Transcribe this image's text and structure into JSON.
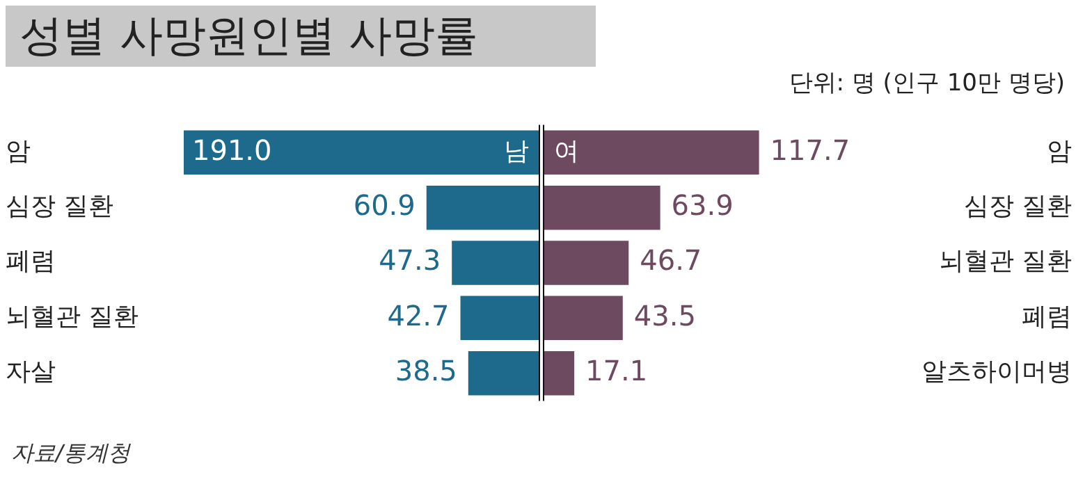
{
  "chart_data": [
    {
      "type": "bar",
      "orientation": "horizontal",
      "title": "성별 사망원인별 사망률",
      "annotations": [
        "자료/통계청"
      ],
      "categories": [
        "암",
        "심장 질환",
        "폐렴",
        "뇌혈관 질환",
        "자살"
      ],
      "series": [
        {
          "name": "남",
          "color": "#1e6a8c",
          "values": [
            191.0,
            60.9,
            47.3,
            42.7,
            38.5
          ],
          "value_labels": [
            "191.0",
            "60.9",
            "47.3",
            "42.7",
            "38.5"
          ]
        }
      ],
      "tick_labels": "y"
    },
    {
      "type": "bar",
      "orientation": "horizontal",
      "subtitle": "단위: 명 (인구 10만 명당)",
      "categories": [
        "암",
        "심장 질환",
        "뇌혈관 질환",
        "폐렴",
        "알츠하이머병"
      ],
      "series": [
        {
          "name": "여",
          "color": "#6d4a60",
          "values": [
            117.7,
            63.9,
            46.7,
            43.5,
            17.1
          ],
          "value_labels": [
            "117.7",
            "63.9",
            "46.7",
            "43.5",
            "17.1"
          ]
        }
      ],
      "tick_labels": "y"
    }
  ]
}
